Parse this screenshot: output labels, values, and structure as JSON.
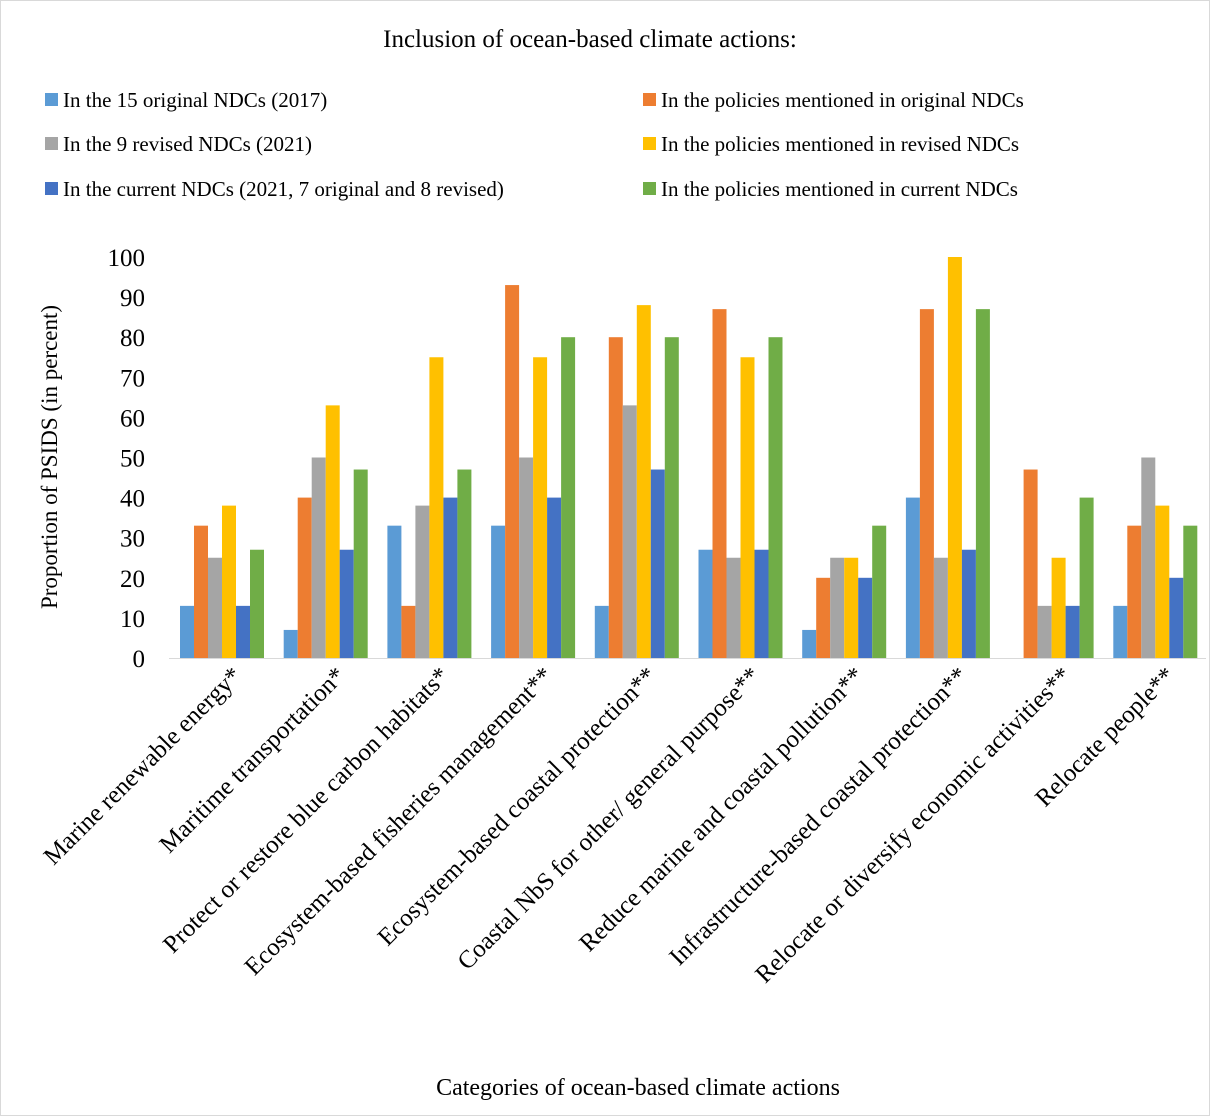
{
  "chart_data": {
    "type": "bar",
    "title": "Inclusion of ocean-based climate actions:",
    "xlabel": "Categories of ocean-based climate actions",
    "ylabel": "Proportion of PSIDS (in percent)",
    "ylim": [
      0,
      100
    ],
    "yticks": [
      0,
      10,
      20,
      30,
      40,
      50,
      60,
      70,
      80,
      90,
      100
    ],
    "grid": false,
    "legend_position": "top",
    "categories": [
      "Marine renewable energy*",
      "Maritime transportation*",
      "Protect or restore blue carbon habitats*",
      "Ecosystem-based fisheries management**",
      "Ecosystem-based coastal protection**",
      "Coastal NbS for other/ general purpose**",
      "Reduce marine and coastal pollution**",
      "Infrastructure-based coastal protection**",
      "Relocate or diversify economic activities**",
      "Relocate people**"
    ],
    "series": [
      {
        "name": "In the 15 original NDCs (2017)",
        "color": "#5B9BD5",
        "values": [
          13,
          7,
          33,
          33,
          13,
          27,
          7,
          40,
          0,
          13
        ]
      },
      {
        "name": "In the policies mentioned in original NDCs",
        "color": "#ED7D31",
        "values": [
          33,
          40,
          13,
          93,
          80,
          87,
          20,
          87,
          47,
          33
        ]
      },
      {
        "name": "In the 9 revised NDCs (2021)",
        "color": "#A5A5A5",
        "values": [
          25,
          50,
          38,
          50,
          63,
          25,
          25,
          25,
          13,
          50
        ]
      },
      {
        "name": "In the policies mentioned in revised NDCs",
        "color": "#FFC000",
        "values": [
          38,
          63,
          75,
          75,
          88,
          75,
          25,
          100,
          25,
          38
        ]
      },
      {
        "name": "In the current NDCs (2021, 7 original and 8 revised)",
        "color": "#4472C4",
        "values": [
          13,
          27,
          40,
          40,
          47,
          27,
          20,
          27,
          13,
          20
        ]
      },
      {
        "name": "In the policies mentioned in current NDCs",
        "color": "#70AD47",
        "values": [
          27,
          47,
          47,
          80,
          80,
          80,
          33,
          87,
          40,
          33
        ]
      }
    ],
    "legend_order": [
      0,
      1,
      2,
      3,
      4,
      5
    ]
  }
}
